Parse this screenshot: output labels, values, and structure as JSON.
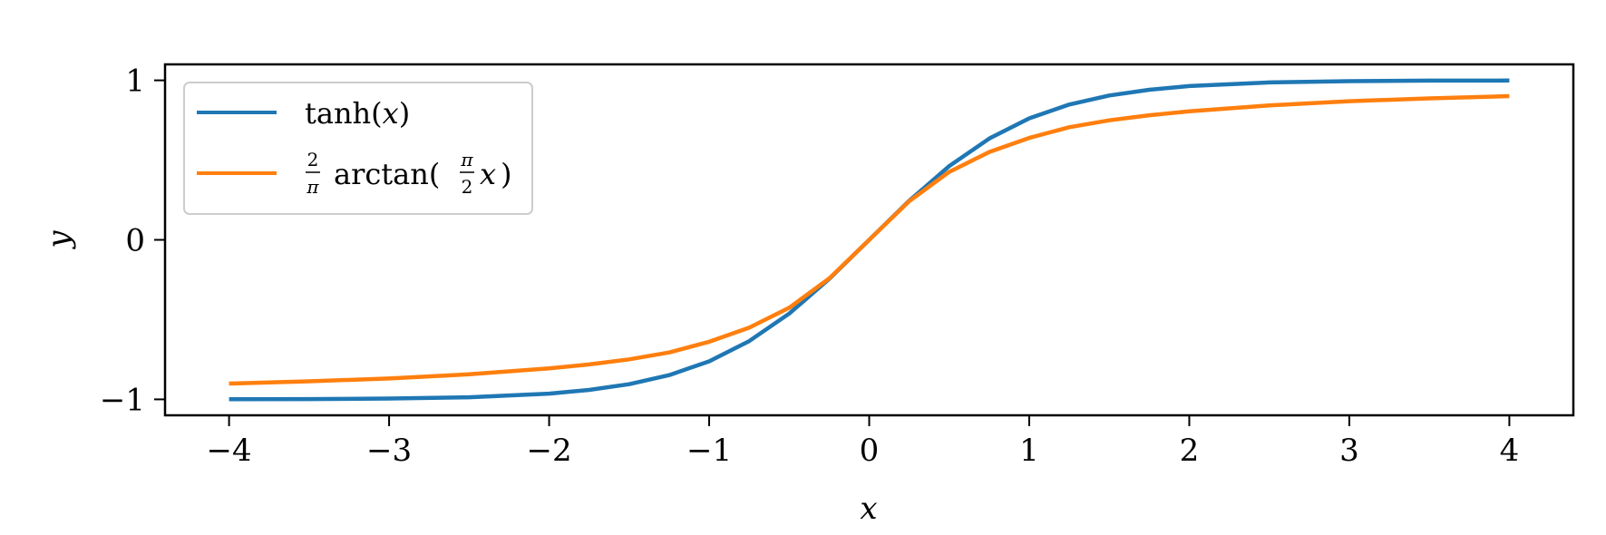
{
  "chart_data": {
    "type": "line",
    "title": "",
    "xlabel": "x",
    "ylabel": "y",
    "xlim": [
      -4.4,
      4.4
    ],
    "ylim": [
      -1.1,
      1.1
    ],
    "xticks": [
      -4,
      -3,
      -2,
      -1,
      0,
      1,
      2,
      3,
      4
    ],
    "xtick_labels": [
      "−4",
      "−3",
      "−2",
      "−1",
      "0",
      "1",
      "2",
      "3",
      "4"
    ],
    "yticks": [
      -1,
      0,
      1
    ],
    "ytick_labels": [
      "−1",
      "0",
      "1"
    ],
    "grid": false,
    "legend_position": "top-left",
    "series": [
      {
        "name": "tanh(x)",
        "legend": {
          "pre": "tanh(",
          "var": "x",
          "post": ")"
        },
        "color": "#1f77b4",
        "x": [
          -4,
          -3.5,
          -3,
          -2.5,
          -2,
          -1.75,
          -1.5,
          -1.25,
          -1,
          -0.75,
          -0.5,
          -0.25,
          0,
          0.25,
          0.5,
          0.75,
          1,
          1.25,
          1.5,
          1.75,
          2,
          2.5,
          3,
          3.5,
          4
        ],
        "y": [
          -0.999,
          -0.998,
          -0.995,
          -0.987,
          -0.964,
          -0.941,
          -0.905,
          -0.848,
          -0.762,
          -0.635,
          -0.462,
          -0.245,
          0,
          0.245,
          0.462,
          0.635,
          0.762,
          0.848,
          0.905,
          0.941,
          0.964,
          0.987,
          0.995,
          0.998,
          0.999
        ]
      },
      {
        "name": "2/π arctan(π/2 x)",
        "legend": {
          "frac1_num": "2",
          "frac1_den": "π",
          "func": "arctan(",
          "frac2_num": "π",
          "frac2_den": "2",
          "var": "x",
          "post": ")"
        },
        "color": "#ff7f0e",
        "x": [
          -4,
          -3.5,
          -3,
          -2.5,
          -2,
          -1.75,
          -1.5,
          -1.25,
          -1,
          -0.75,
          -0.5,
          -0.25,
          0,
          0.25,
          0.5,
          0.75,
          1,
          1.25,
          1.5,
          1.75,
          2,
          2.5,
          3,
          3.5,
          4
        ],
        "y": [
          -0.901,
          -0.887,
          -0.869,
          -0.843,
          -0.806,
          -0.781,
          -0.749,
          -0.706,
          -0.639,
          -0.551,
          -0.426,
          -0.242,
          0,
          0.242,
          0.426,
          0.551,
          0.639,
          0.706,
          0.749,
          0.781,
          0.806,
          0.843,
          0.869,
          0.887,
          0.901
        ]
      }
    ]
  }
}
